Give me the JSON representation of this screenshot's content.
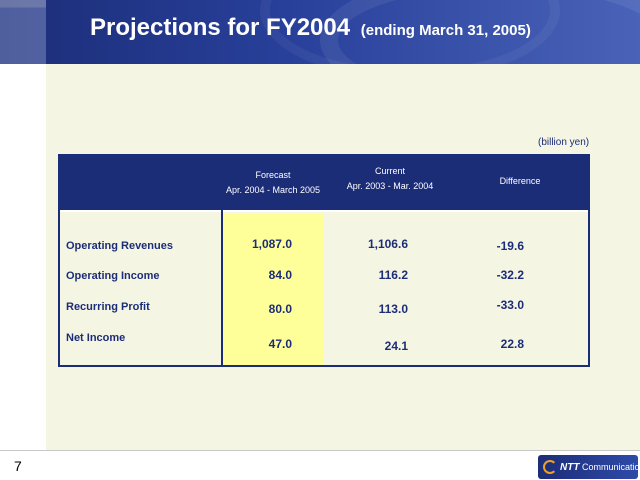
{
  "slide": {
    "title": "Projections for FY2004",
    "subtitle": "(ending March 31, 2005)",
    "unit": "(billion yen)",
    "page_number": "7"
  },
  "table": {
    "headers": {
      "forecast_line1": "Forecast",
      "forecast_line2": "Apr. 2004 - March 2005",
      "current_line1": "Current",
      "current_line2": "Apr. 2003 - Mar. 2004",
      "difference": "Difference"
    },
    "rows": [
      {
        "label": "Operating Revenues",
        "forecast": "1,087.0",
        "current": "1,106.6",
        "difference": "-19.6"
      },
      {
        "label": "Operating Income",
        "forecast": "84.0",
        "current": "116.2",
        "difference": "-32.2"
      },
      {
        "label": "Recurring Profit",
        "forecast": "80.0",
        "current": "113.0",
        "difference": "-33.0"
      },
      {
        "label": "Net Income",
        "forecast": "47.0",
        "current": "24.1",
        "difference": "22.8"
      }
    ]
  },
  "logo": {
    "brand": "NTT",
    "name": "Communications"
  },
  "colors": {
    "navy": "#1c2d78",
    "forecast_highlight": "#ffff99",
    "background": "#f5f5e3"
  }
}
